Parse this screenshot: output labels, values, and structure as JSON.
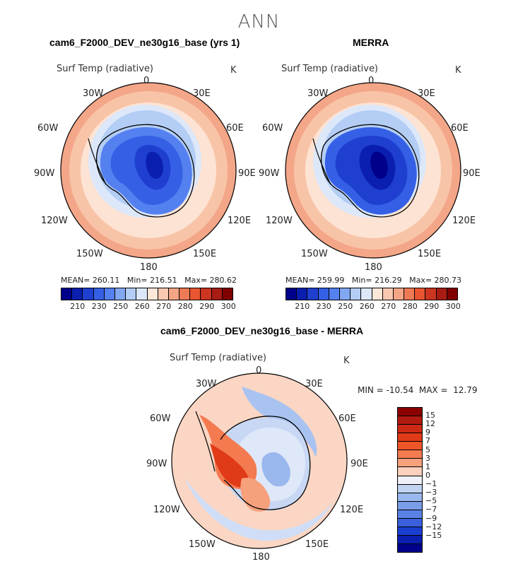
{
  "figure": {
    "title": "ANN"
  },
  "panel_model": {
    "title": "cam6_F2000_DEV_ne30g16_base (yrs 1)",
    "variable": "Surf Temp (radiative)",
    "units": "K",
    "stats": "MEAN= 260.11   Min= 216.51   Max= 280.62"
  },
  "panel_obs": {
    "title": "MERRA",
    "variable": "Surf Temp (radiative)",
    "units": "K",
    "stats": "MEAN= 259.99   Min= 216.29   Max= 280.73"
  },
  "panel_diff": {
    "title": "cam6_F2000_DEV_ne30g16_base - MERRA",
    "variable": "Surf Temp (radiative)",
    "units": "K",
    "stats": "MIN = -10.54  MAX =  12.79"
  },
  "lon_labels": [
    "0",
    "30E",
    "60E",
    "90E",
    "120E",
    "150E",
    "180",
    "150W",
    "120W",
    "90W",
    "60W",
    "30W"
  ],
  "colorbar_abs": {
    "ticks": [
      "210",
      "230",
      "250",
      "260",
      "270",
      "280",
      "290",
      "300"
    ],
    "colors": [
      "#00008b",
      "#0a1fb0",
      "#1f3fd0",
      "#3560e6",
      "#5580f0",
      "#82a8f2",
      "#b3cdf5",
      "#dce8fa",
      "#fde7d8",
      "#f8c8b0",
      "#f3a585",
      "#ee7a55",
      "#e85530",
      "#cc3520",
      "#a81c14",
      "#800000"
    ]
  },
  "colorbar_diff": {
    "ticks": [
      "15",
      "12",
      "9",
      "7",
      "5",
      "3",
      "1",
      "0",
      "−1",
      "−3",
      "−5",
      "−7",
      "−9",
      "−12",
      "−15"
    ],
    "colors": [
      "#8b0000",
      "#b01a10",
      "#cc2a15",
      "#e03a18",
      "#ee5528",
      "#f47a50",
      "#f7a07c",
      "#fbd0bc",
      "#eef2f8",
      "#c0d4f2",
      "#9ab8ee",
      "#7a9de8",
      "#5a82e4",
      "#3a60dc",
      "#1a3fd0",
      "#0a1fb0",
      "#00008b"
    ]
  },
  "chart_data": [
    {
      "type": "heatmap",
      "title": "cam6_F2000_DEV_ne30g16_base (yrs 1)",
      "variable": "Surf Temp (radiative)",
      "units": "K",
      "projection": "south polar stereographic",
      "mean": 260.11,
      "min": 216.51,
      "max": 280.62,
      "contour_levels": [
        210,
        215,
        220,
        225,
        230,
        235,
        240,
        245,
        250,
        255,
        260,
        265,
        270,
        275,
        280,
        285,
        290,
        295,
        300
      ]
    },
    {
      "type": "heatmap",
      "title": "MERRA",
      "variable": "Surf Temp (radiative)",
      "units": "K",
      "projection": "south polar stereographic",
      "mean": 259.99,
      "min": 216.29,
      "max": 280.73,
      "contour_levels": [
        210,
        215,
        220,
        225,
        230,
        235,
        240,
        245,
        250,
        255,
        260,
        265,
        270,
        275,
        280,
        285,
        290,
        295,
        300
      ]
    },
    {
      "type": "heatmap",
      "title": "cam6_F2000_DEV_ne30g16_base - MERRA",
      "variable": "Surf Temp (radiative)",
      "units": "K",
      "projection": "south polar stereographic",
      "min": -10.54,
      "max": 12.79,
      "contour_levels": [
        -15,
        -12,
        -9,
        -7,
        -5,
        -3,
        -1,
        0,
        1,
        3,
        5,
        7,
        9,
        12,
        15
      ]
    }
  ]
}
